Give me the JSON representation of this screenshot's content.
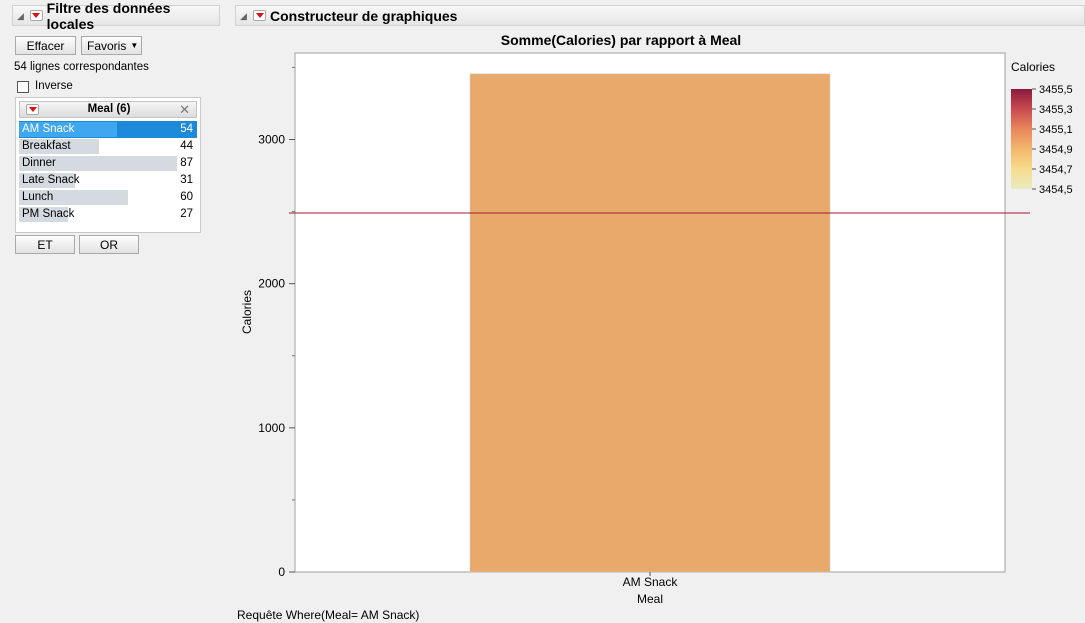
{
  "left_panel": {
    "title": "Filtre des données locales",
    "clear_label": "Effacer",
    "favorites_label": "Favoris",
    "matching_rows": "54 lignes correspondantes",
    "inverse_label": "Inverse",
    "filter_title": "Meal (6)",
    "items": [
      {
        "label": "AM Snack",
        "count": "54",
        "fraction": 0.62,
        "selected": true
      },
      {
        "label": "Breakfast",
        "count": "44",
        "fraction": 0.506,
        "selected": false
      },
      {
        "label": "Dinner",
        "count": "87",
        "fraction": 1.0,
        "selected": false
      },
      {
        "label": "Late Snack",
        "count": "31",
        "fraction": 0.356,
        "selected": false
      },
      {
        "label": "Lunch",
        "count": "60",
        "fraction": 0.69,
        "selected": false
      },
      {
        "label": "PM Snack",
        "count": "27",
        "fraction": 0.31,
        "selected": false
      }
    ],
    "and_label": "ET",
    "or_label": "OR"
  },
  "graph_panel": {
    "title": "Constructeur de graphiques"
  },
  "where_clause": "Requête Where(Meal= AM Snack)",
  "chart_data": {
    "type": "bar",
    "title": "Somme(Calories) par rapport à Meal",
    "xlabel": "Meal",
    "ylabel": "Calories",
    "categories": [
      "AM Snack"
    ],
    "values": [
      3455
    ],
    "ylim": [
      0,
      3600
    ],
    "yticks": [
      0,
      1000,
      2000,
      3000
    ],
    "reference_line": 2490,
    "bar_color": "#e8a96a",
    "reference_line_color": "#a01830",
    "legend": {
      "title": "Calories",
      "ticks": [
        "3455,5",
        "3455,3",
        "3455,1",
        "3454,9",
        "3454,7",
        "3454,5"
      ],
      "colors": [
        "#8b1a3e",
        "#c94a4f",
        "#e8875a",
        "#f2b76c",
        "#f6dc8e",
        "#e8ebc0"
      ]
    }
  }
}
